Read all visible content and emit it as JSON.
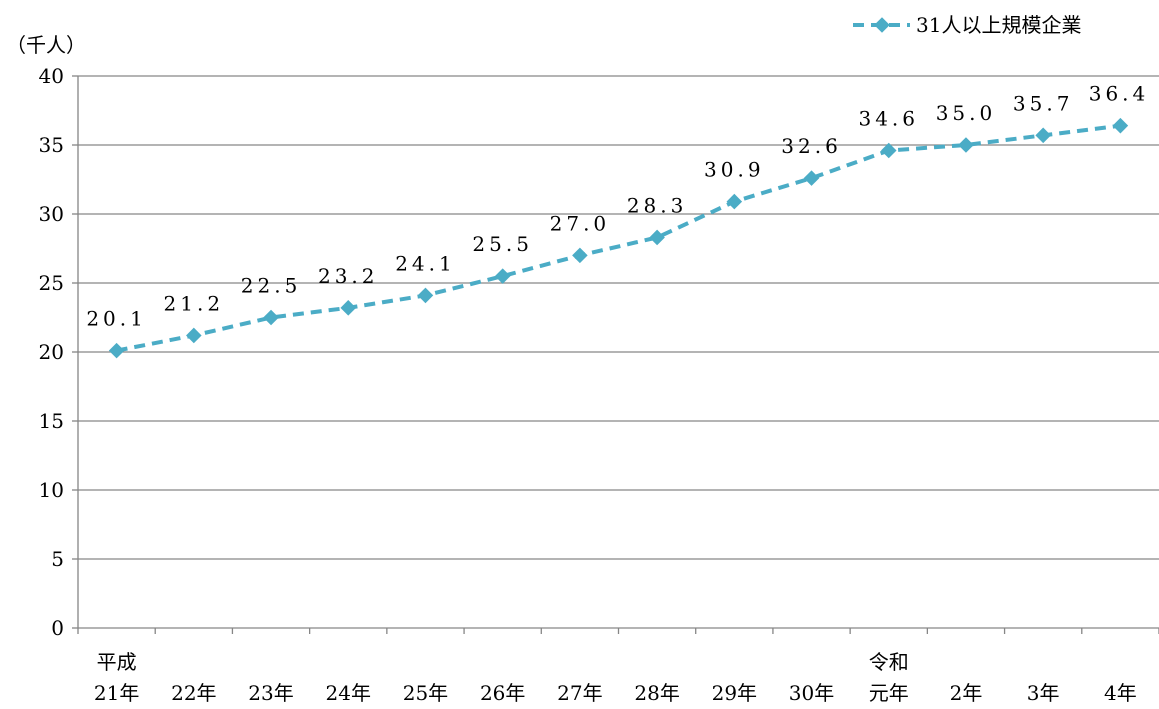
{
  "chart_data": {
    "type": "line",
    "unit_label": "（千人）",
    "categories": [
      {
        "era": "平成",
        "label": "21年"
      },
      {
        "era": "",
        "label": "22年"
      },
      {
        "era": "",
        "label": "23年"
      },
      {
        "era": "",
        "label": "24年"
      },
      {
        "era": "",
        "label": "25年"
      },
      {
        "era": "",
        "label": "26年"
      },
      {
        "era": "",
        "label": "27年"
      },
      {
        "era": "",
        "label": "28年"
      },
      {
        "era": "",
        "label": "29年"
      },
      {
        "era": "",
        "label": "30年"
      },
      {
        "era": "令和",
        "label": "元年"
      },
      {
        "era": "",
        "label": "2年"
      },
      {
        "era": "",
        "label": "3年"
      },
      {
        "era": "",
        "label": "4年"
      }
    ],
    "series": [
      {
        "name": "31人以上規模企業",
        "values": [
          20.1,
          21.2,
          22.5,
          23.2,
          24.1,
          25.5,
          27.0,
          28.3,
          30.9,
          32.6,
          34.6,
          35.0,
          35.7,
          36.4
        ],
        "value_labels": [
          "20.1",
          "21.2",
          "22.5",
          "23.2",
          "24.1",
          "25.5",
          "27.0",
          "28.3",
          "30.9",
          "32.6",
          "34.6",
          "35.0",
          "35.7",
          "36.4"
        ],
        "color": "#4bacc6"
      }
    ],
    "y_ticks": [
      "0",
      "5",
      "10",
      "15",
      "20",
      "25",
      "30",
      "35",
      "40"
    ],
    "ylim": [
      0,
      40
    ],
    "grid": true,
    "legend_position": "top-right",
    "colors": {
      "grid": "#868686",
      "axis": "#868686",
      "text": "#000000"
    }
  }
}
